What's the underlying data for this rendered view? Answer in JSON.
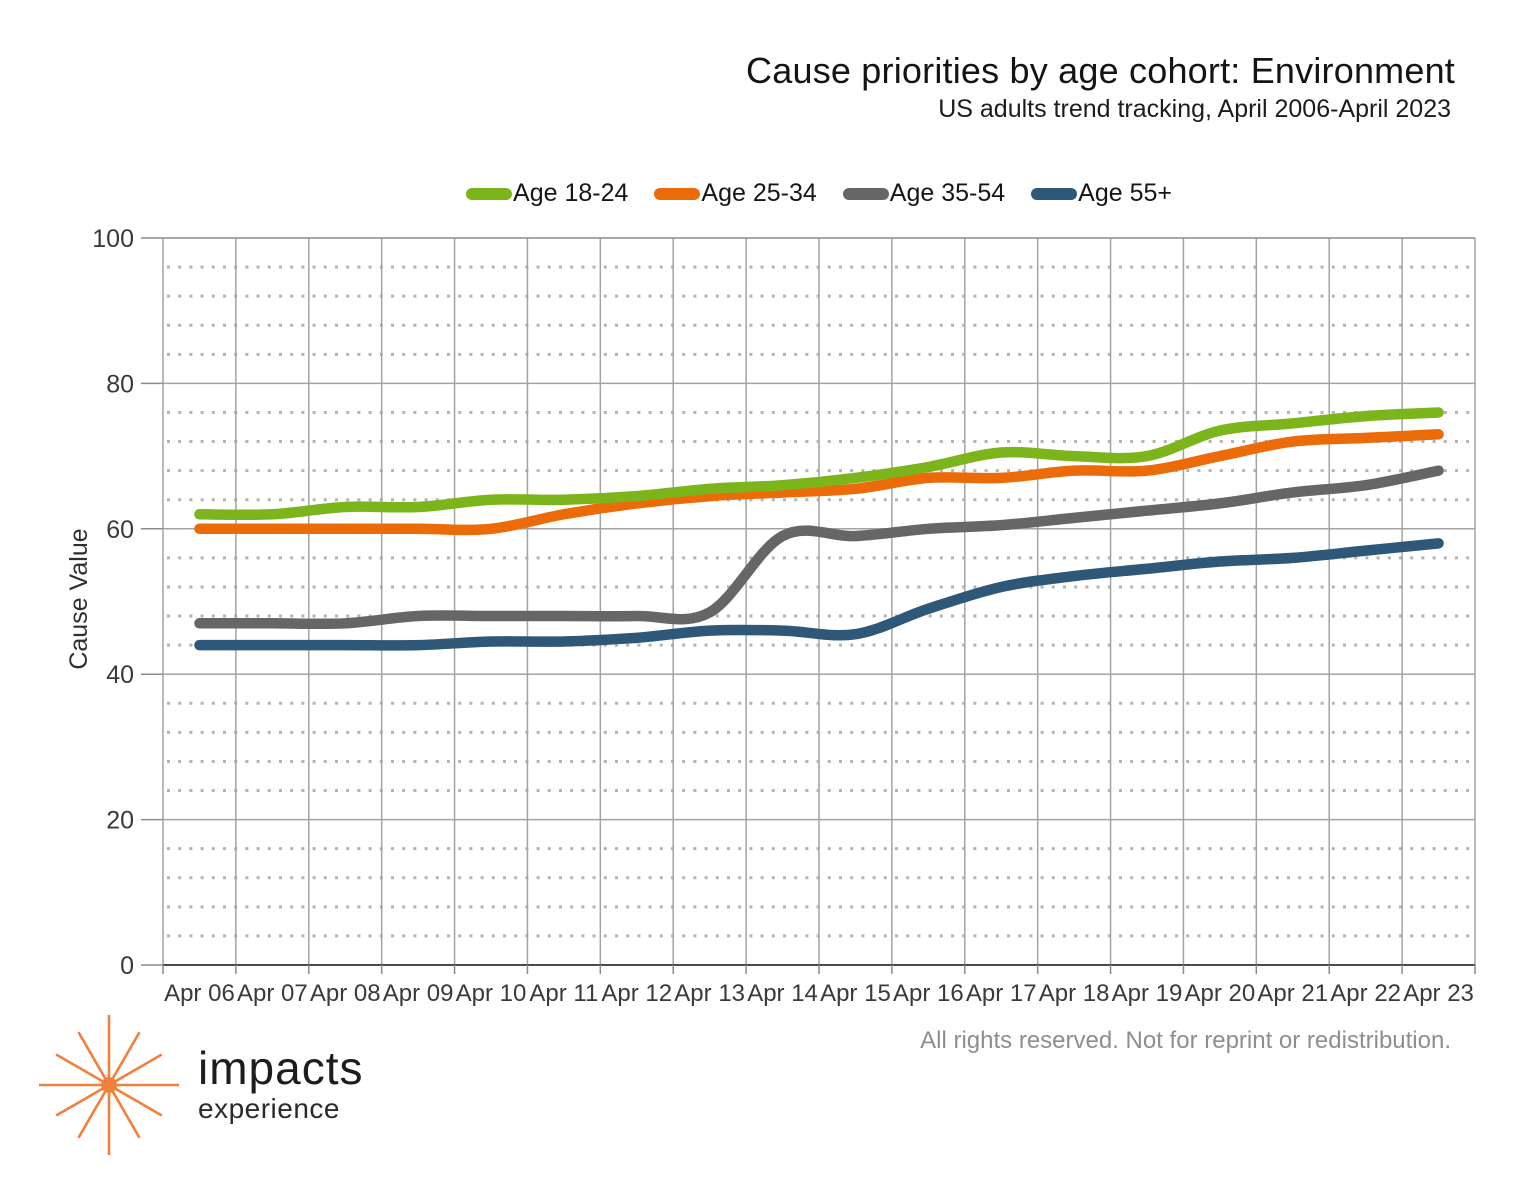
{
  "header": {
    "title": "Cause priorities by age cohort: Environment",
    "subtitle": "US adults trend tracking, April 2006-April 2023"
  },
  "chart_data": {
    "type": "line",
    "title": "Cause priorities by age cohort: Environment",
    "subtitle": "US adults trend tracking, April 2006-April 2023",
    "xlabel": "",
    "ylabel": "Cause Value",
    "ylim": [
      0,
      100
    ],
    "y_major_step": 20,
    "y_minor_step": 4,
    "grid": "solid major horizontals and verticals, dotted minor horizontals",
    "legend_position": "top",
    "line_smoothing": true,
    "categories": [
      "Apr 06",
      "Apr 07",
      "Apr 08",
      "Apr 09",
      "Apr 10",
      "Apr 11",
      "Apr 12",
      "Apr 13",
      "Apr 14",
      "Apr 15",
      "Apr 16",
      "Apr 17",
      "Apr 18",
      "Apr 19",
      "Apr 20",
      "Apr 21",
      "Apr 22",
      "Apr 23"
    ],
    "series": [
      {
        "name": "Age 18-24",
        "color": "#7CB51B",
        "values": [
          62,
          62,
          63,
          63,
          64,
          64,
          64.5,
          65.5,
          66,
          67,
          68.5,
          70.5,
          70,
          70,
          73.5,
          74.5,
          75.5,
          76
        ]
      },
      {
        "name": "Age 25-34",
        "color": "#EC6B09",
        "values": [
          60,
          60,
          60,
          60,
          60,
          62,
          63.5,
          64.5,
          65,
          65.5,
          67,
          67,
          68,
          68,
          70,
          72,
          72.5,
          73
        ]
      },
      {
        "name": "Age 35-54",
        "color": "#666666",
        "values": [
          47,
          47,
          47,
          48,
          48,
          48,
          48,
          48.5,
          59,
          59,
          60,
          60.5,
          61.5,
          62.5,
          63.5,
          65,
          66,
          68
        ]
      },
      {
        "name": "Age 55+",
        "color": "#2F5878",
        "values": [
          44,
          44,
          44,
          44,
          44.5,
          44.5,
          45,
          46,
          46,
          45.5,
          49,
          52,
          53.5,
          54.5,
          55.5,
          56,
          57,
          58
        ]
      }
    ]
  },
  "footer": {
    "rights": "All rights reserved. Not for reprint or redistribution.",
    "logo": {
      "line1": "impacts",
      "line2": "experience",
      "starburst_icon": "orange 12-ray starburst",
      "starburst_color": "#F0813D"
    }
  },
  "style_colors": {
    "major_grid": "#A3A3A3",
    "minor_grid": "#B3B3B3",
    "axis_line": "#4A4A4A",
    "top_border": "#8C8C8C",
    "tick": "#8C8C8C",
    "tick_label": "#3A3A3A"
  }
}
